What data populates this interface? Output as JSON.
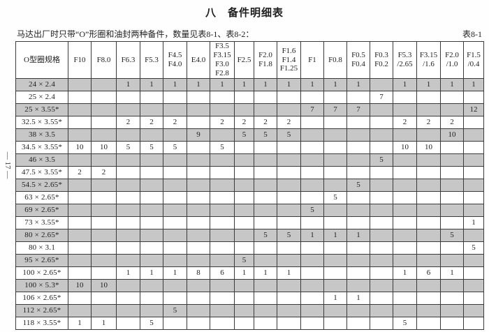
{
  "page": {
    "title": "八　备件明细表",
    "intro": "马达出厂时只带“O”形圈和油封两种备件，数量见表8-1、表8-2：",
    "table_label": "表8-1",
    "page_number": "— 17 —"
  },
  "table": {
    "corner_header": "O型圈规格",
    "column_headers": [
      [
        "F10"
      ],
      [
        "F8.0"
      ],
      [
        "F6.3"
      ],
      [
        "F5.3"
      ],
      [
        "F4.5",
        "F4.0"
      ],
      [
        "E4.0"
      ],
      [
        "F3.5",
        "F3.15",
        "F3.0",
        "F2.8"
      ],
      [
        "F2.5"
      ],
      [
        "F2.0",
        "F1.8"
      ],
      [
        "F1.6",
        "F1.4",
        "F1.25"
      ],
      [
        "F1"
      ],
      [
        "F0.8"
      ],
      [
        "F0.5",
        "F0.4"
      ],
      [
        "F0.3",
        "F0.2"
      ],
      [
        "F5.3",
        "/2.65"
      ],
      [
        "F3.15",
        "/1.6"
      ],
      [
        "F2.0",
        "/1.0"
      ],
      [
        "F1.5",
        "/0.4"
      ]
    ],
    "rows": [
      {
        "label": "24 × 2.4",
        "values": [
          "",
          "",
          "1",
          "1",
          "1",
          "1",
          "1",
          "1",
          "1",
          "1",
          "1",
          "1",
          "1",
          "",
          "1",
          "1",
          "1",
          "1"
        ]
      },
      {
        "label": "25 × 2.4",
        "values": [
          "",
          "",
          "",
          "",
          "",
          "",
          "",
          "",
          "",
          "",
          "",
          "",
          "",
          "7",
          "",
          "",
          "",
          ""
        ]
      },
      {
        "label": "25 × 3.55*",
        "values": [
          "",
          "",
          "",
          "",
          "",
          "",
          "",
          "",
          "",
          "",
          "7",
          "7",
          "7",
          "",
          "",
          "",
          "",
          "12"
        ]
      },
      {
        "label": "32.5 × 3.55*",
        "values": [
          "",
          "",
          "2",
          "2",
          "2",
          "",
          "2",
          "2",
          "2",
          "2",
          "",
          "",
          "",
          "",
          "2",
          "2",
          "2",
          ""
        ]
      },
      {
        "label": "38 × 3.5",
        "values": [
          "",
          "",
          "",
          "",
          "",
          "9",
          "",
          "5",
          "5",
          "5",
          "",
          "",
          "",
          "",
          "",
          "",
          "10",
          ""
        ]
      },
      {
        "label": "34.5 × 3.55*",
        "values": [
          "10",
          "10",
          "5",
          "5",
          "5",
          "",
          "5",
          "",
          "",
          "",
          "",
          "",
          "",
          "",
          "10",
          "10",
          "",
          ""
        ]
      },
      {
        "label": "46 × 3.5",
        "values": [
          "",
          "",
          "",
          "",
          "",
          "",
          "",
          "",
          "",
          "",
          "",
          "",
          "",
          "5",
          "",
          "",
          "",
          ""
        ]
      },
      {
        "label": "47.5 × 3.55*",
        "values": [
          "2",
          "2",
          "",
          "",
          "",
          "",
          "",
          "",
          "",
          "",
          "",
          "",
          "",
          "",
          "",
          "",
          "",
          ""
        ]
      },
      {
        "label": "54.5 × 2.65*",
        "values": [
          "",
          "",
          "",
          "",
          "",
          "",
          "",
          "",
          "",
          "",
          "",
          "",
          "5",
          "",
          "",
          "",
          "",
          ""
        ]
      },
      {
        "label": "63 × 2.65*",
        "values": [
          "",
          "",
          "",
          "",
          "",
          "",
          "",
          "",
          "",
          "",
          "",
          "5",
          "",
          "",
          "",
          "",
          "",
          ""
        ]
      },
      {
        "label": "69 × 2.65*",
        "values": [
          "",
          "",
          "",
          "",
          "",
          "",
          "",
          "",
          "",
          "",
          "5",
          "",
          "",
          "",
          "",
          "",
          "",
          ""
        ]
      },
      {
        "label": "73 × 3.55*",
        "values": [
          "",
          "",
          "",
          "",
          "",
          "",
          "",
          "",
          "",
          "",
          "",
          "",
          "",
          "",
          "",
          "",
          "",
          "1"
        ]
      },
      {
        "label": "80 × 2.65*",
        "values": [
          "",
          "",
          "",
          "",
          "",
          "",
          "",
          "",
          "5",
          "5",
          "1",
          "1",
          "1",
          "",
          "",
          "",
          "5",
          ""
        ]
      },
      {
        "label": "80 × 3.1",
        "values": [
          "",
          "",
          "",
          "",
          "",
          "",
          "",
          "",
          "",
          "",
          "",
          "",
          "",
          "",
          "",
          "",
          "",
          "5"
        ]
      },
      {
        "label": "95 × 2.65*",
        "values": [
          "",
          "",
          "",
          "",
          "",
          "",
          "",
          "5",
          "",
          "",
          "",
          "",
          "",
          "",
          "",
          "",
          "",
          ""
        ]
      },
      {
        "label": "100 × 2.65*",
        "values": [
          "",
          "",
          "1",
          "1",
          "1",
          "8",
          "6",
          "1",
          "1",
          "1",
          "",
          "",
          "",
          "",
          "1",
          "6",
          "1",
          ""
        ]
      },
      {
        "label": "100 × 5.3*",
        "values": [
          "10",
          "10",
          "",
          "",
          "",
          "",
          "",
          "",
          "",
          "",
          "",
          "",
          "",
          "",
          "",
          "",
          "",
          ""
        ]
      },
      {
        "label": "106 × 2.65*",
        "values": [
          "",
          "",
          "",
          "",
          "",
          "",
          "",
          "",
          "",
          "",
          "",
          "1",
          "1",
          "",
          "",
          "",
          "",
          ""
        ]
      },
      {
        "label": "112 × 2.65*",
        "values": [
          "",
          "",
          "",
          "",
          "5",
          "",
          "",
          "",
          "",
          "",
          "",
          "",
          "",
          "",
          "",
          "",
          "",
          ""
        ]
      },
      {
        "label": "118 × 3.55*",
        "values": [
          "1",
          "1",
          "",
          "5",
          "",
          "",
          "",
          "",
          "",
          "",
          "",
          "",
          "",
          "",
          "5",
          "",
          "",
          ""
        ]
      }
    ]
  },
  "colors": {
    "stripe": "#c7c7c7",
    "border": "#3a3a3a"
  }
}
